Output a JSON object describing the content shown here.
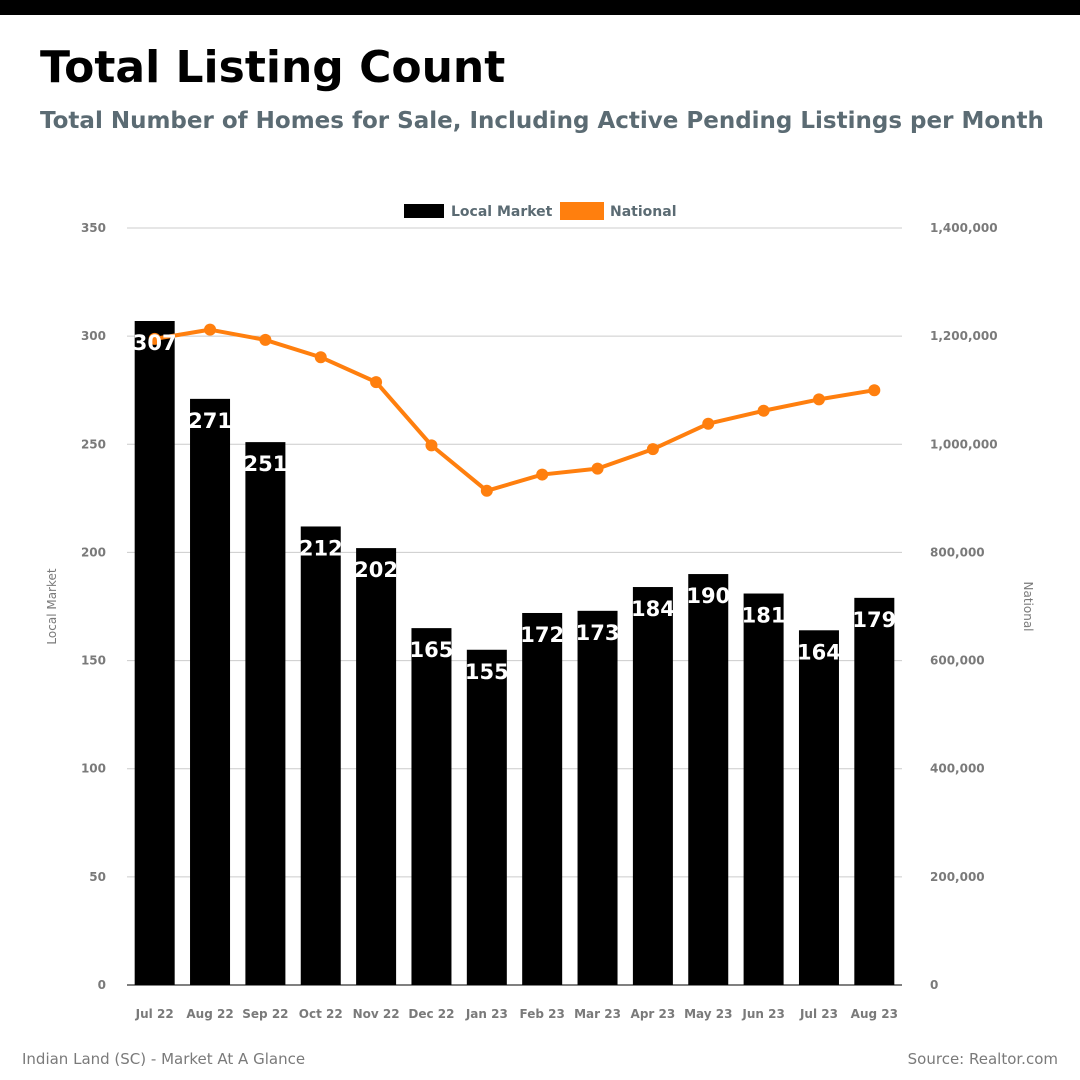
{
  "header": {
    "title": "Total Listing Count",
    "subtitle": "Total Number of Homes for Sale, Including Active Pending Listings per Month"
  },
  "footer": {
    "left": "Indian Land (SC) - Market At A Glance",
    "right": "Source: Realtor.com"
  },
  "colors": {
    "local": "#000000",
    "national": "#ff7f0e",
    "grid": "#cccccc",
    "text_muted": "#7a7a7a"
  },
  "chart_data": {
    "type": "bar",
    "categories": [
      "Jul 22",
      "Aug 22",
      "Sep 22",
      "Oct 22",
      "Nov 22",
      "Dec 22",
      "Jan 23",
      "Feb 23",
      "Mar 23",
      "Apr 23",
      "May 23",
      "Jun 23",
      "Jul 23",
      "Aug 23"
    ],
    "series": [
      {
        "name": "Local Market",
        "type": "bar",
        "axis": "left",
        "values": [
          307,
          271,
          251,
          212,
          202,
          165,
          155,
          172,
          173,
          184,
          190,
          181,
          164,
          179
        ],
        "color": "#000000"
      },
      {
        "name": "National",
        "type": "line",
        "axis": "right",
        "values": [
          1195000,
          1212000,
          1193000,
          1161000,
          1115000,
          998000,
          914000,
          944000,
          955000,
          991000,
          1038000,
          1062000,
          1083000,
          1100000
        ],
        "color": "#ff7f0e"
      }
    ],
    "ylabel": "Local Market",
    "y2label": "National",
    "ylim": [
      0,
      350
    ],
    "y2lim": [
      0,
      1400000
    ],
    "yticks": [
      "0",
      "50",
      "100",
      "150",
      "200",
      "250",
      "300",
      "350"
    ],
    "y2ticks": [
      "0",
      "200,000",
      "400,000",
      "600,000",
      "800,000",
      "1,000,000",
      "1,200,000",
      "1,400,000"
    ],
    "grid": true,
    "legend": "top-center"
  }
}
